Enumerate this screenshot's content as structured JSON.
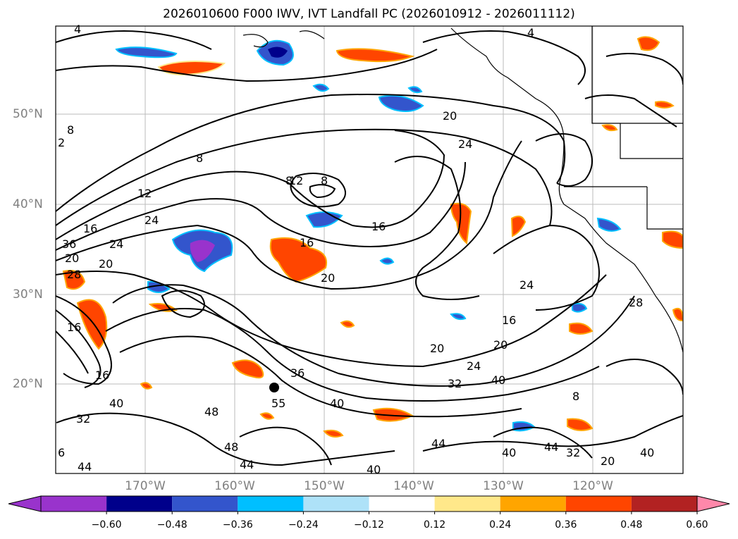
{
  "title": "2026010600 F000 IWV, IVT Landfall PC (2026010912 - 2026011112)",
  "lon_labels": [
    "170°W",
    "160°W",
    "150°W",
    "140°W",
    "130°W",
    "120°W"
  ],
  "lat_labels": [
    "50°N",
    "40°N",
    "30°N",
    "20°N"
  ],
  "colorbar": {
    "ticks": [
      "−0.60",
      "−0.48",
      "−0.36",
      "−0.24",
      "−0.12",
      "0.12",
      "0.24",
      "0.36",
      "0.48",
      "0.60"
    ],
    "colors": [
      "#9933cc",
      "#00008b",
      "#3355cc",
      "#00bfff",
      "#aee2f8",
      "#ffffff",
      "#ffe88a",
      "#ffa500",
      "#ff4500",
      "#b22222",
      "#ff88aa"
    ]
  },
  "contour_labels": [
    "4",
    "4",
    "8",
    "2",
    "8",
    "8",
    "12",
    "8",
    "12",
    "16",
    "24",
    "20",
    "24",
    "36",
    "20",
    "28",
    "16",
    "16",
    "20",
    "24",
    "16",
    "20",
    "20",
    "24",
    "20",
    "32",
    "40",
    "36",
    "24",
    "40",
    "55",
    "48",
    "32",
    "40",
    "44",
    "48",
    "44",
    "40",
    "40",
    "44",
    "32",
    "8",
    "20",
    "28",
    "40",
    "16",
    "6",
    "44",
    "16"
  ]
}
